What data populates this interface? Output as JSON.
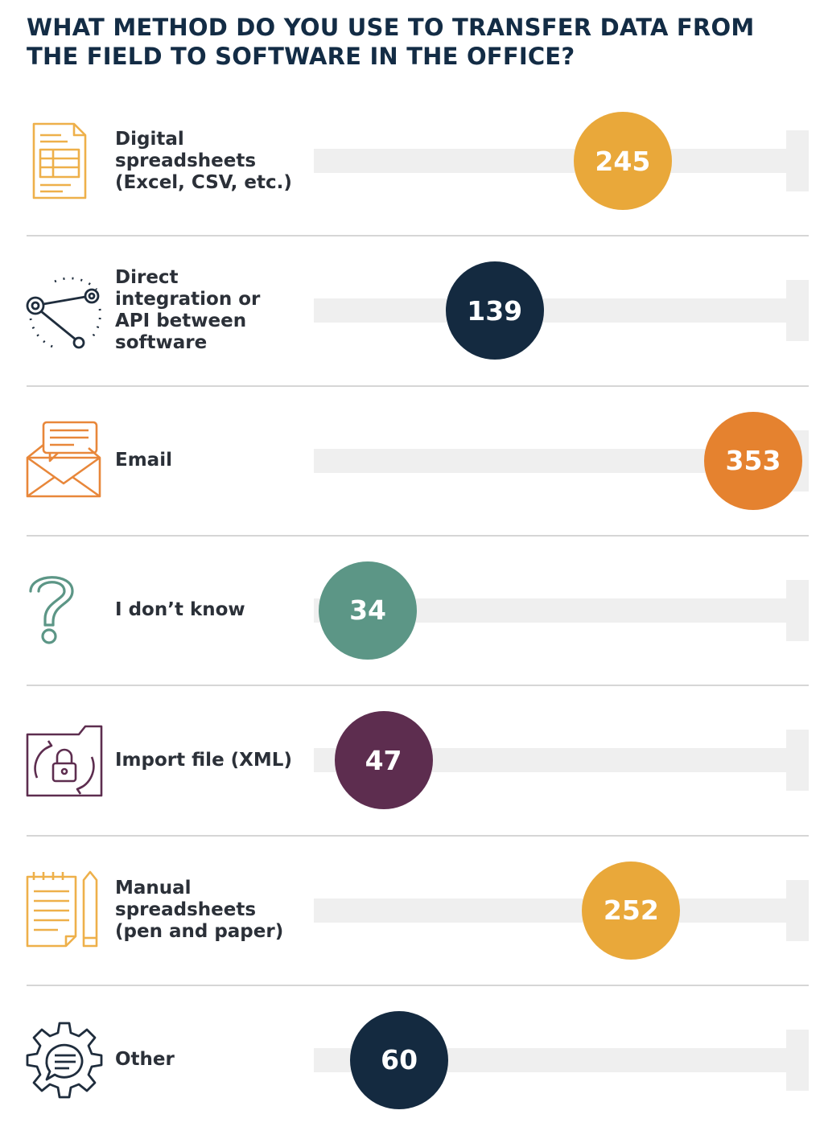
{
  "chart_data": {
    "type": "bar",
    "title": "WHAT METHOD DO YOU USE TO TRANSFER DATA FROM THE FIELD TO SOFTWARE IN THE OFFICE?",
    "xlabel": "",
    "ylabel": "",
    "xlim": [
      0,
      353
    ],
    "categories": [
      "Digital spreadsheets (Excel, CSV, etc.)",
      "Direct integration or API between software",
      "Email",
      "I don't know",
      "Import file (XML)",
      "Manual spreadsheets (pen and paper)",
      "Other"
    ],
    "values": [
      245,
      139,
      353,
      34,
      47,
      252,
      60
    ],
    "rows": [
      {
        "label": "Digital\nspreadsheets\n(Excel, CSV, etc.)",
        "value": 245,
        "display": "245",
        "color": "#e9a83a",
        "icon": "spreadsheet-icon"
      },
      {
        "label": "Direct\nintegration or\nAPI between\nsoftware",
        "value": 139,
        "display": "139",
        "color": "#142a40",
        "icon": "api-network-icon"
      },
      {
        "label": "Email",
        "value": 353,
        "display": "353",
        "color": "#e5822f",
        "icon": "email-icon"
      },
      {
        "label": "I don’t know",
        "value": 34,
        "display": "34",
        "color": "#5c9686",
        "icon": "question-mark-icon"
      },
      {
        "label": "Import file (XML)",
        "value": 47,
        "display": "47",
        "color": "#5d2d4f",
        "icon": "import-file-lock-icon"
      },
      {
        "label": "Manual\nspreadsheets\n(pen and paper)",
        "value": 252,
        "display": "252",
        "color": "#e9a83a",
        "icon": "notepad-pencil-icon"
      },
      {
        "label": "Other",
        "value": 60,
        "display": "60",
        "color": "#142a40",
        "icon": "gear-chat-icon"
      }
    ]
  },
  "icon_colors": {
    "spreadsheet": "#eeb04a",
    "api": "#1f2d3d",
    "email": "#e8873a",
    "question": "#5c9686",
    "import": "#5d2d4f",
    "notepad": "#eeb04a",
    "gear": "#1f2d3d"
  }
}
